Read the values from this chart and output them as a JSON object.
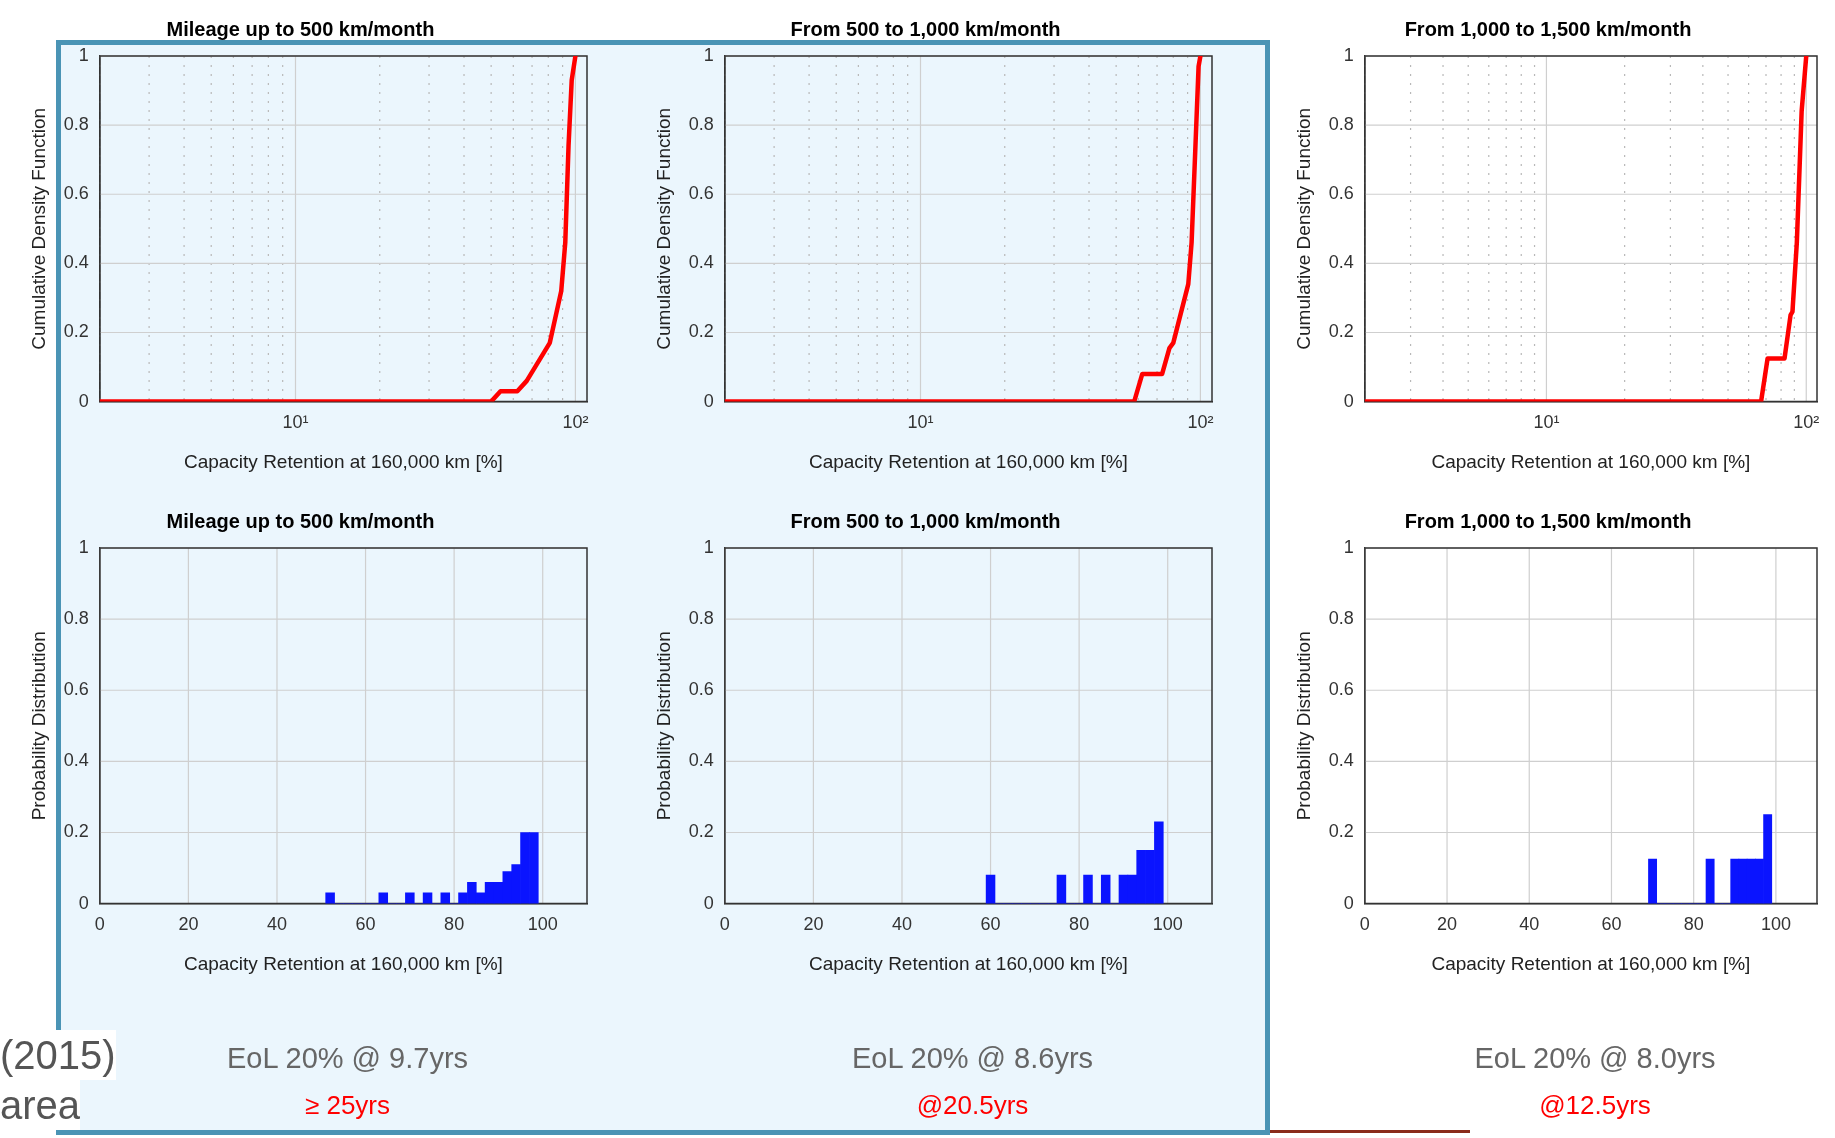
{
  "chart_data": [
    {
      "type": "line",
      "title": "Mileage up to 500 km/month",
      "xlabel": "Capacity Retention at 160,000 km [%]",
      "ylabel": "Cumulative Density Function",
      "log": "x",
      "xlim": [
        2,
        110
      ],
      "xticks": [
        {
          "value": 2,
          "label": null
        },
        {
          "value": 3,
          "label": null
        },
        {
          "value": 4,
          "label": null
        },
        {
          "value": 5,
          "label": null
        },
        {
          "value": 6,
          "label": null
        },
        {
          "value": 7,
          "label": null
        },
        {
          "value": 8,
          "label": null
        },
        {
          "value": 9,
          "label": null
        },
        {
          "value": 10,
          "label": "10¹"
        },
        {
          "value": 20,
          "label": null
        },
        {
          "value": 30,
          "label": null
        },
        {
          "value": 40,
          "label": null
        },
        {
          "value": 50,
          "label": null
        },
        {
          "value": 60,
          "label": null
        },
        {
          "value": 70,
          "label": null
        },
        {
          "value": 80,
          "label": null
        },
        {
          "value": 90,
          "label": null
        },
        {
          "value": 100,
          "label": "10²"
        }
      ],
      "ylim": [
        0,
        1
      ],
      "yticks": [
        0,
        0.2,
        0.4,
        0.6,
        0.8,
        1
      ],
      "grid": true,
      "series": [
        {
          "color": "#ff0000",
          "x": [
            2,
            50,
            54,
            62,
            67,
            81,
            89,
            92,
            94.5,
            97,
            100
          ],
          "values": [
            0,
            0,
            0.03,
            0.03,
            0.06,
            0.17,
            0.32,
            0.46,
            0.74,
            0.93,
            1
          ]
        }
      ]
    },
    {
      "type": "line",
      "title": "From 500 to 1,000 km/month",
      "xlabel": "Capacity Retention at 160,000 km [%]",
      "ylabel": "Cumulative Density Function",
      "log": "x",
      "xlim": [
        2,
        110
      ],
      "xticks": [
        {
          "value": 2,
          "label": null
        },
        {
          "value": 3,
          "label": null
        },
        {
          "value": 4,
          "label": null
        },
        {
          "value": 5,
          "label": null
        },
        {
          "value": 6,
          "label": null
        },
        {
          "value": 7,
          "label": null
        },
        {
          "value": 8,
          "label": null
        },
        {
          "value": 9,
          "label": null
        },
        {
          "value": 10,
          "label": "10¹"
        },
        {
          "value": 20,
          "label": null
        },
        {
          "value": 30,
          "label": null
        },
        {
          "value": 40,
          "label": null
        },
        {
          "value": 50,
          "label": null
        },
        {
          "value": 60,
          "label": null
        },
        {
          "value": 70,
          "label": null
        },
        {
          "value": 80,
          "label": null
        },
        {
          "value": 90,
          "label": null
        },
        {
          "value": 100,
          "label": "10²"
        }
      ],
      "ylim": [
        0,
        1
      ],
      "yticks": [
        0,
        0.2,
        0.4,
        0.6,
        0.8,
        1
      ],
      "grid": true,
      "series": [
        {
          "color": "#ff0000",
          "x": [
            2,
            58,
            62,
            73,
            77.5,
            80,
            90.5,
            93,
            96,
            98.5,
            100
          ],
          "values": [
            0,
            0,
            0.08,
            0.08,
            0.155,
            0.17,
            0.34,
            0.46,
            0.74,
            0.97,
            1
          ]
        }
      ]
    },
    {
      "type": "line",
      "title": "From 1,000 to 1,500 km/month",
      "xlabel": "Capacity Retention at 160,000 km [%]",
      "ylabel": "Cumulative Density Function",
      "log": "x",
      "xlim": [
        2,
        110
      ],
      "xticks": [
        {
          "value": 2,
          "label": null
        },
        {
          "value": 3,
          "label": null
        },
        {
          "value": 4,
          "label": null
        },
        {
          "value": 5,
          "label": null
        },
        {
          "value": 6,
          "label": null
        },
        {
          "value": 7,
          "label": null
        },
        {
          "value": 8,
          "label": null
        },
        {
          "value": 9,
          "label": null
        },
        {
          "value": 10,
          "label": "10¹"
        },
        {
          "value": 20,
          "label": null
        },
        {
          "value": 30,
          "label": null
        },
        {
          "value": 40,
          "label": null
        },
        {
          "value": 50,
          "label": null
        },
        {
          "value": 60,
          "label": null
        },
        {
          "value": 70,
          "label": null
        },
        {
          "value": 80,
          "label": null
        },
        {
          "value": 90,
          "label": null
        },
        {
          "value": 100,
          "label": "10²"
        }
      ],
      "ylim": [
        0,
        1
      ],
      "yticks": [
        0,
        0.2,
        0.4,
        0.6,
        0.8,
        1
      ],
      "grid": true,
      "series": [
        {
          "color": "#ff0000",
          "x": [
            2,
            67,
            71,
            82.5,
            87,
            88.5,
            92,
            96,
            100
          ],
          "values": [
            0,
            0,
            0.125,
            0.125,
            0.25,
            0.26,
            0.46,
            0.84,
            1
          ]
        }
      ]
    },
    {
      "type": "histogram",
      "title": "Mileage up to 500 km/month",
      "xlabel": "Capacity Retention at 160,000 km [%]",
      "ylabel": "Probability Distribution",
      "xlim": [
        0,
        110
      ],
      "xticks": [
        0,
        20,
        40,
        60,
        80,
        100
      ],
      "ylim": [
        0,
        1
      ],
      "yticks": [
        0,
        0.2,
        0.4,
        0.6,
        0.8,
        1
      ],
      "grid": true,
      "color": "#0a14ff",
      "bins": [
        51,
        53,
        55,
        57,
        59,
        61,
        63,
        65,
        67,
        69,
        71,
        73,
        75,
        77,
        79,
        81,
        83,
        85,
        87,
        89,
        91,
        93,
        95,
        97,
        99
      ],
      "values": [
        0.03,
        0,
        0,
        0,
        0,
        0,
        0.03,
        0,
        0,
        0.03,
        0,
        0.03,
        0,
        0.03,
        0,
        0.03,
        0.06,
        0.03,
        0.06,
        0.06,
        0.09,
        0.11,
        0.2,
        0.2
      ],
      "annotations": [
        "EoL 20% @ 9.7yrs",
        "≥ 25yrs"
      ]
    },
    {
      "type": "histogram",
      "title": "From 500 to 1,000 km/month",
      "xlabel": "Capacity Retention at 160,000 km [%]",
      "ylabel": "Probability Distribution",
      "xlim": [
        0,
        110
      ],
      "xticks": [
        0,
        20,
        40,
        60,
        80,
        100
      ],
      "ylim": [
        0,
        1
      ],
      "yticks": [
        0,
        0.2,
        0.4,
        0.6,
        0.8,
        1
      ],
      "grid": true,
      "color": "#0a14ff",
      "bins": [
        59,
        61,
        63,
        65,
        67,
        69,
        71,
        73,
        75,
        77,
        79,
        81,
        83,
        85,
        87,
        89,
        91,
        93,
        95,
        97,
        99
      ],
      "values": [
        0.08,
        0,
        0,
        0,
        0,
        0,
        0,
        0,
        0.08,
        0,
        0,
        0.08,
        0,
        0.08,
        0,
        0.08,
        0.08,
        0.15,
        0.15,
        0.23
      ],
      "annotations": [
        "EoL 20% @ 8.6yrs",
        "@20.5yrs"
      ]
    },
    {
      "type": "histogram",
      "title": "From 1,000 to 1,500 km/month",
      "xlabel": "Capacity Retention at 160,000 km [%]",
      "ylabel": "Probability Distribution",
      "xlim": [
        0,
        110
      ],
      "xticks": [
        0,
        20,
        40,
        60,
        80,
        100
      ],
      "ylim": [
        0,
        1
      ],
      "yticks": [
        0,
        0.2,
        0.4,
        0.6,
        0.8,
        1
      ],
      "grid": true,
      "color": "#0a14ff",
      "bins": [
        69,
        71,
        73,
        75,
        77,
        79,
        81,
        83,
        85,
        87,
        89,
        91,
        93,
        95,
        97,
        99
      ],
      "values": [
        0.125,
        0,
        0,
        0,
        0,
        0,
        0,
        0.125,
        0,
        0,
        0.125,
        0.125,
        0.125,
        0.125,
        0.25
      ],
      "annotations": [
        "EoL 20% @ 8.0yrs",
        "@12.5yrs"
      ]
    },
    {
      "type": "other",
      "annotations": [
        "(2015)",
        "area"
      ]
    }
  ]
}
